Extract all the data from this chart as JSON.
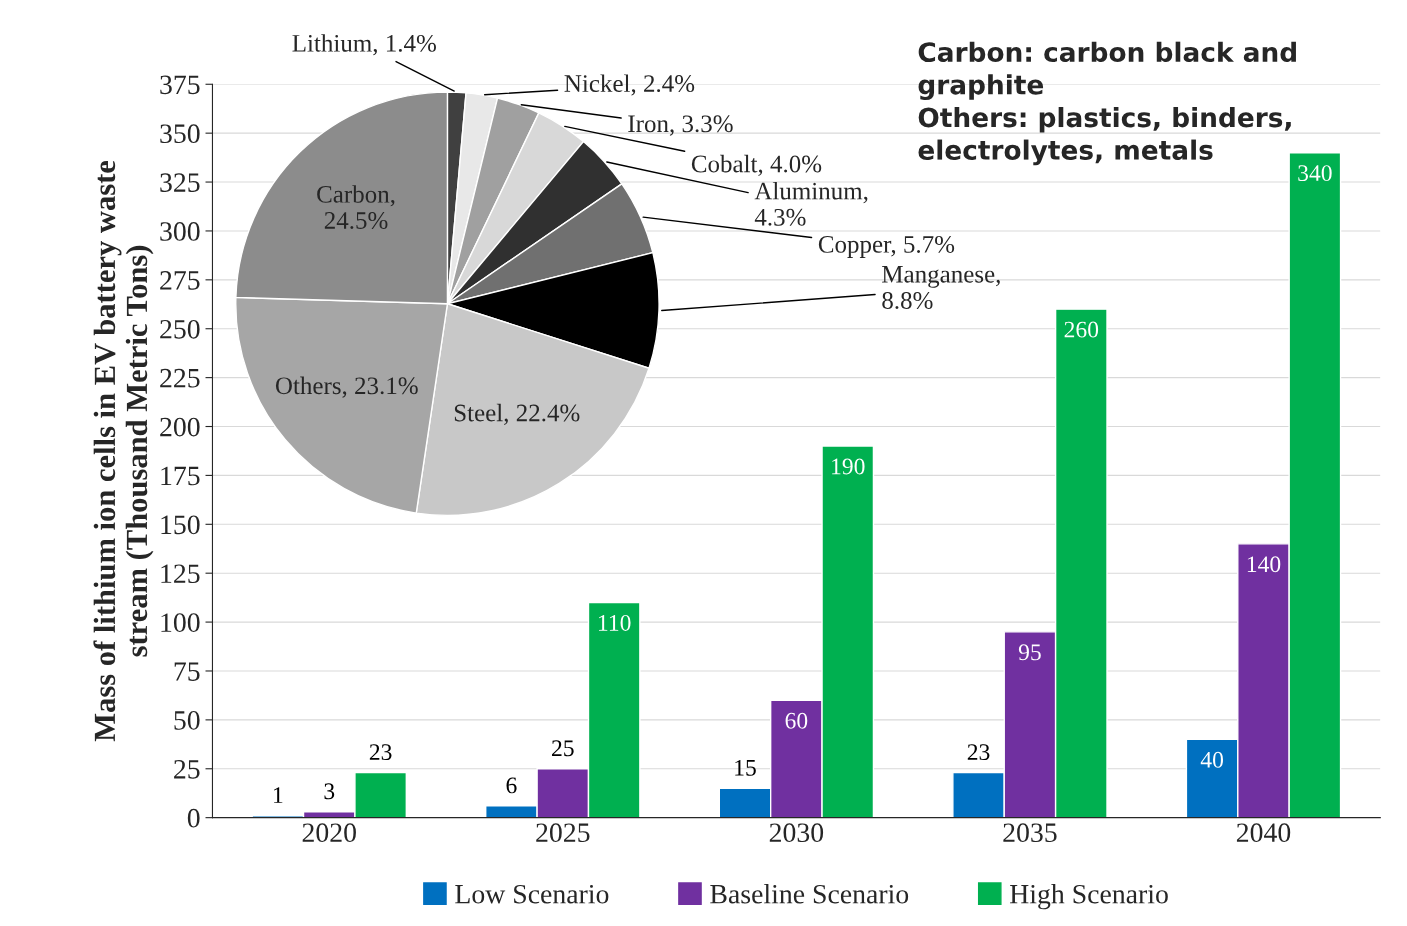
{
  "chart_data": [
    {
      "type": "bar",
      "ylabel": "Mass of lithium ion cells in EV battery waste\nstream (Thousand Metric Tons)",
      "categories": [
        "2020",
        "2025",
        "2030",
        "2035",
        "2040"
      ],
      "series": [
        {
          "name": "Low Scenario",
          "color": "#0070c0",
          "values": [
            1,
            6,
            15,
            23,
            40
          ]
        },
        {
          "name": "Baseline Scenario",
          "color": "#7030a0",
          "values": [
            3,
            25,
            60,
            95,
            140
          ]
        },
        {
          "name": "High Scenario",
          "color": "#00b050",
          "values": [
            23,
            110,
            190,
            260,
            340
          ]
        }
      ],
      "ylim": [
        0,
        375
      ],
      "yticks": [
        0,
        25,
        50,
        75,
        100,
        125,
        150,
        175,
        200,
        225,
        250,
        275,
        300,
        325,
        350,
        375
      ],
      "grid": "y",
      "legend": "bottom",
      "data_labels": true,
      "annotations": [
        "Carbon: carbon black and\ngraphite\nOthers: plastics, binders,\nelectrolytes, metals"
      ]
    },
    {
      "type": "pie",
      "categories": [
        "Lithium, 1.4%",
        "Nickel, 2.4%",
        "Iron, 3.3%",
        "Cobalt, 4.0%",
        "Aluminum,\n4.3%",
        "Copper, 5.7%",
        "Manganese,\n8.8%",
        "Steel, 22.4%",
        "Others, 23.1%",
        "Carbon,\n24.5%"
      ],
      "values": [
        1.4,
        2.4,
        3.3,
        4.0,
        4.3,
        5.7,
        8.8,
        22.4,
        23.1,
        24.5
      ],
      "colors": [
        "#404040",
        "#e8e8e8",
        "#a0a0a0",
        "#d8d8d8",
        "#303030",
        "#707070",
        "#000000",
        "#c8c8c8",
        "#a6a6a6",
        "#8c8c8c"
      ]
    }
  ]
}
